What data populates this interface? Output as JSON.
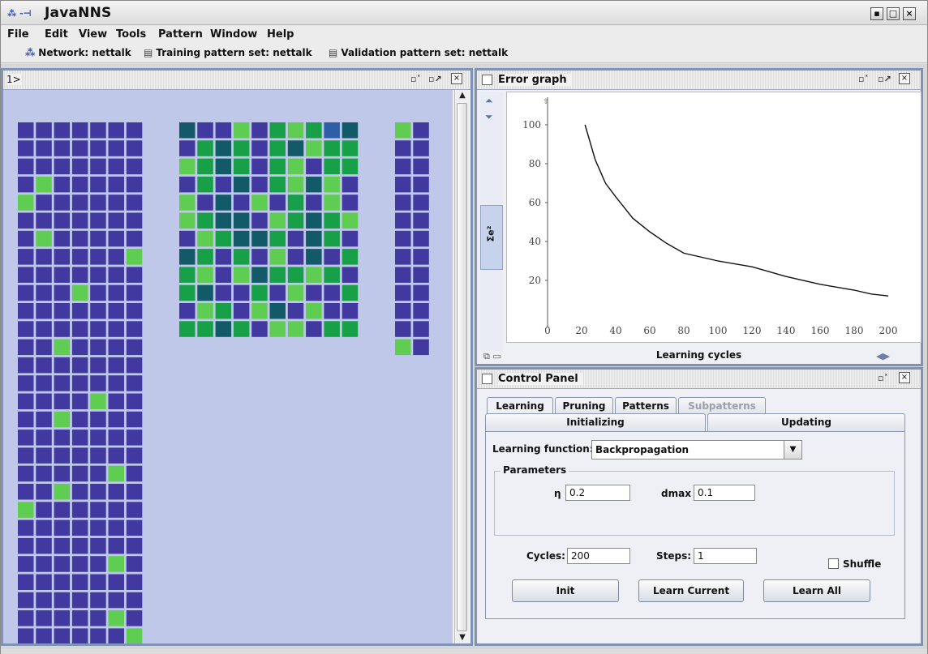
{
  "app": {
    "icon": "javanns-app-icon",
    "title": "JavaNNS",
    "window_buttons": [
      "minimize",
      "maximize",
      "close"
    ]
  },
  "menu": [
    "File",
    "Edit",
    "View",
    "Tools",
    "Pattern",
    "Window",
    "Help"
  ],
  "info": {
    "network": "Network: nettalk",
    "training": "Training pattern set: nettalk",
    "validation": "Validation pattern set: nettalk"
  },
  "network_window": {
    "title": "1>",
    "colors": {
      "blue": "#4139a0",
      "light": "#5fcc52",
      "green": "#17a048",
      "dark": "#135a68",
      "mid": "#2c5ea7"
    },
    "input_layer": {
      "cols": 7,
      "rows": 29,
      "light_cells": [
        [
          3,
          1
        ],
        [
          4,
          0
        ],
        [
          6,
          1
        ],
        [
          7,
          6
        ],
        [
          9,
          3
        ],
        [
          12,
          2
        ],
        [
          15,
          4
        ],
        [
          16,
          2
        ],
        [
          19,
          5
        ],
        [
          20,
          2
        ],
        [
          21,
          0
        ],
        [
          24,
          5
        ],
        [
          27,
          5
        ],
        [
          28,
          6
        ]
      ]
    },
    "hidden_layer": {
      "rows": [
        "dbbLbGLGBd",
        "bGdGbGdLGG",
        "LGdGbGLbGG",
        "bGbdbGLdLb",
        "LbdbLbGbLb",
        "LGddbLGdGL",
        "bLGddGbdGb",
        "dGbGbLbdbG",
        "GLbLdGGLGb",
        "GdbbGbLbbG",
        "bLGbLdbLbb",
        "GGdGbLLbGG"
      ]
    },
    "output_layer": {
      "cols": 2,
      "rows": 13,
      "light_cells": [
        [
          0,
          0
        ],
        [
          12,
          0
        ]
      ]
    }
  },
  "error_graph": {
    "title": "Error graph",
    "y_axis_label": "Σe²",
    "x_axis_label": "Learning cycles",
    "x_ticks": [
      "0",
      "20",
      "40",
      "60",
      "80",
      "100",
      "120",
      "140",
      "160",
      "180",
      "200"
    ],
    "y_ticks": [
      "20",
      "40",
      "60",
      "80",
      "100"
    ],
    "chart_data": {
      "type": "line",
      "x": [
        22,
        28,
        34,
        40,
        50,
        60,
        70,
        80,
        100,
        120,
        140,
        160,
        180,
        190,
        200
      ],
      "y": [
        100,
        82,
        70,
        63,
        52,
        45,
        39,
        34,
        30,
        27,
        22,
        18,
        15,
        13,
        12
      ],
      "xlim": [
        0,
        200
      ],
      "ylim": [
        0,
        110
      ]
    }
  },
  "control_panel": {
    "title": "Control Panel",
    "tabs_row1": [
      "Learning",
      "Pruning",
      "Patterns",
      "Subpatterns"
    ],
    "tabs_row2": [
      "Initializing",
      "Updating"
    ],
    "learning_function_label": "Learning function:",
    "learning_function_value": "Backpropagation",
    "params_title": "Parameters",
    "eta_label": "η",
    "eta_value": "0.2",
    "dmax_label": "dmax",
    "dmax_value": "0.1",
    "cycles_label": "Cycles:",
    "cycles_value": "200",
    "steps_label": "Steps:",
    "steps_value": "1",
    "shuffle_label": "Shuffle",
    "buttons": [
      "Init",
      "Learn Current",
      "Learn All"
    ]
  }
}
